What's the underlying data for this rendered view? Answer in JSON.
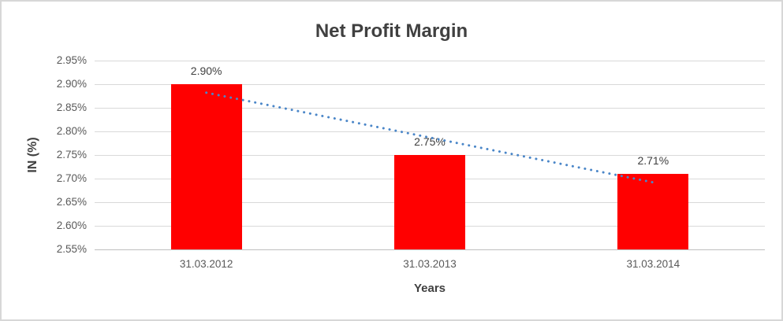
{
  "chart_data": {
    "type": "bar",
    "title": "Net Profit Margin",
    "xlabel": "Years",
    "ylabel": "IN (%)",
    "categories": [
      "31.03.2012",
      "31.03.2013",
      "31.03.2014"
    ],
    "values": [
      2.9,
      2.75,
      2.71
    ],
    "value_labels": [
      "2.90%",
      "2.75%",
      "2.71%"
    ],
    "ylim": [
      2.55,
      2.95
    ],
    "ytick_step": 0.05,
    "ytick_labels": [
      "2.95%",
      "2.90%",
      "2.85%",
      "2.80%",
      "2.75%",
      "2.70%",
      "2.65%",
      "2.60%",
      "2.55%"
    ],
    "grid": true,
    "legend_position": "none",
    "trendline": {
      "type": "linear",
      "style": "dotted",
      "start_value": 2.882,
      "end_value": 2.692
    },
    "colors": {
      "bar": "#FF0000",
      "trendline": "#4A86C8",
      "gridline": "#D9D9D9",
      "axis_line": "#BFBFBF",
      "tick_label": "#595959",
      "text": "#404040",
      "frame_border": "#D7D7D7",
      "background": "#FFFFFF"
    }
  }
}
